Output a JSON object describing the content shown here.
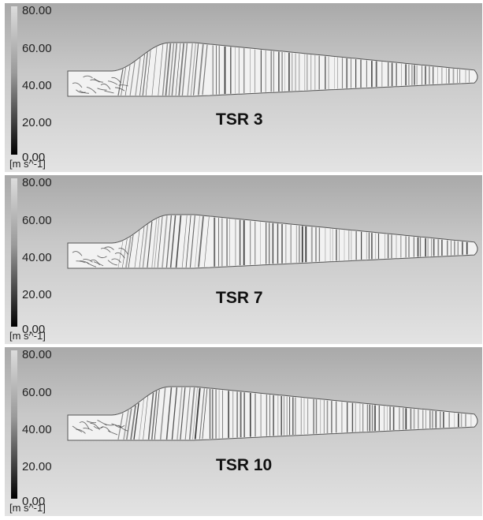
{
  "panels": [
    {
      "label": "TSR 3",
      "colorbar": {
        "ticks": [
          "80.00",
          "60.00",
          "40.00",
          "20.00",
          "0.00"
        ],
        "unit": "[m s^-1]"
      }
    },
    {
      "label": "TSR 7",
      "colorbar": {
        "ticks": [
          "80.00",
          "60.00",
          "40.00",
          "20.00",
          "0.00"
        ],
        "unit": "[m s^-1]"
      }
    },
    {
      "label": "TSR 10",
      "colorbar": {
        "ticks": [
          "80.00",
          "60.00",
          "40.00",
          "20.00",
          "0.00"
        ],
        "unit": "[m s^-1]"
      }
    }
  ],
  "colors": {
    "background_top": "#a9a9a9",
    "background_bottom": "#e3e3e3",
    "streak": "#333333",
    "blade": "#f2f2f2"
  }
}
